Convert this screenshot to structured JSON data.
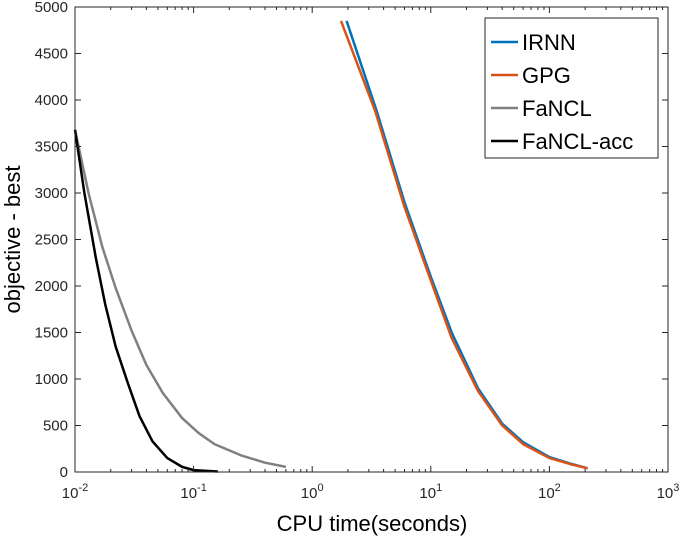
{
  "chart_data": {
    "type": "line",
    "title": "",
    "xlabel": "CPU time(seconds)",
    "ylabel": "objective - best",
    "xscale": "log",
    "xlim": [
      0.01,
      1000
    ],
    "ylim": [
      0,
      5000
    ],
    "xticks": [
      0.01,
      0.1,
      1,
      10,
      100,
      1000
    ],
    "xtick_labels": [
      {
        "base": "10",
        "exp": "-2"
      },
      {
        "base": "10",
        "exp": "-1"
      },
      {
        "base": "10",
        "exp": "0"
      },
      {
        "base": "10",
        "exp": "1"
      },
      {
        "base": "10",
        "exp": "2"
      },
      {
        "base": "10",
        "exp": "3"
      }
    ],
    "yticks": [
      0,
      500,
      1000,
      1500,
      2000,
      2500,
      3000,
      3500,
      4000,
      4500,
      5000
    ],
    "ytick_labels": [
      "0",
      "500",
      "1000",
      "1500",
      "2000",
      "2500",
      "3000",
      "3500",
      "4000",
      "4500",
      "5000"
    ],
    "grid": false,
    "legend_position": "top-right",
    "series": [
      {
        "name": "IRNN",
        "color": "#0072BD",
        "points": [
          [
            1.95,
            4850
          ],
          [
            3.5,
            3880
          ],
          [
            6,
            2900
          ],
          [
            10,
            2100
          ],
          [
            15,
            1500
          ],
          [
            25,
            900
          ],
          [
            40,
            520
          ],
          [
            60,
            320
          ],
          [
            100,
            160
          ],
          [
            150,
            90
          ],
          [
            210,
            40
          ]
        ]
      },
      {
        "name": "GPG",
        "color": "#D95319",
        "points": [
          [
            1.75,
            4850
          ],
          [
            3.4,
            3880
          ],
          [
            6,
            2850
          ],
          [
            10,
            2060
          ],
          [
            15,
            1440
          ],
          [
            25,
            870
          ],
          [
            40,
            500
          ],
          [
            60,
            300
          ],
          [
            100,
            150
          ],
          [
            150,
            85
          ],
          [
            210,
            40
          ]
        ]
      },
      {
        "name": "FaNCL",
        "color": "#808080",
        "points": [
          [
            0.01,
            3680
          ],
          [
            0.013,
            3000
          ],
          [
            0.017,
            2420
          ],
          [
            0.022,
            1980
          ],
          [
            0.03,
            1520
          ],
          [
            0.04,
            1150
          ],
          [
            0.055,
            850
          ],
          [
            0.08,
            580
          ],
          [
            0.11,
            420
          ],
          [
            0.15,
            300
          ],
          [
            0.25,
            180
          ],
          [
            0.4,
            100
          ],
          [
            0.6,
            55
          ]
        ]
      },
      {
        "name": "FaNCL-acc",
        "color": "#000000",
        "points": [
          [
            0.01,
            3680
          ],
          [
            0.012,
            3000
          ],
          [
            0.015,
            2300
          ],
          [
            0.018,
            1800
          ],
          [
            0.022,
            1350
          ],
          [
            0.028,
            950
          ],
          [
            0.035,
            600
          ],
          [
            0.045,
            330
          ],
          [
            0.06,
            150
          ],
          [
            0.08,
            55
          ],
          [
            0.1,
            20
          ],
          [
            0.16,
            5
          ]
        ]
      }
    ]
  }
}
